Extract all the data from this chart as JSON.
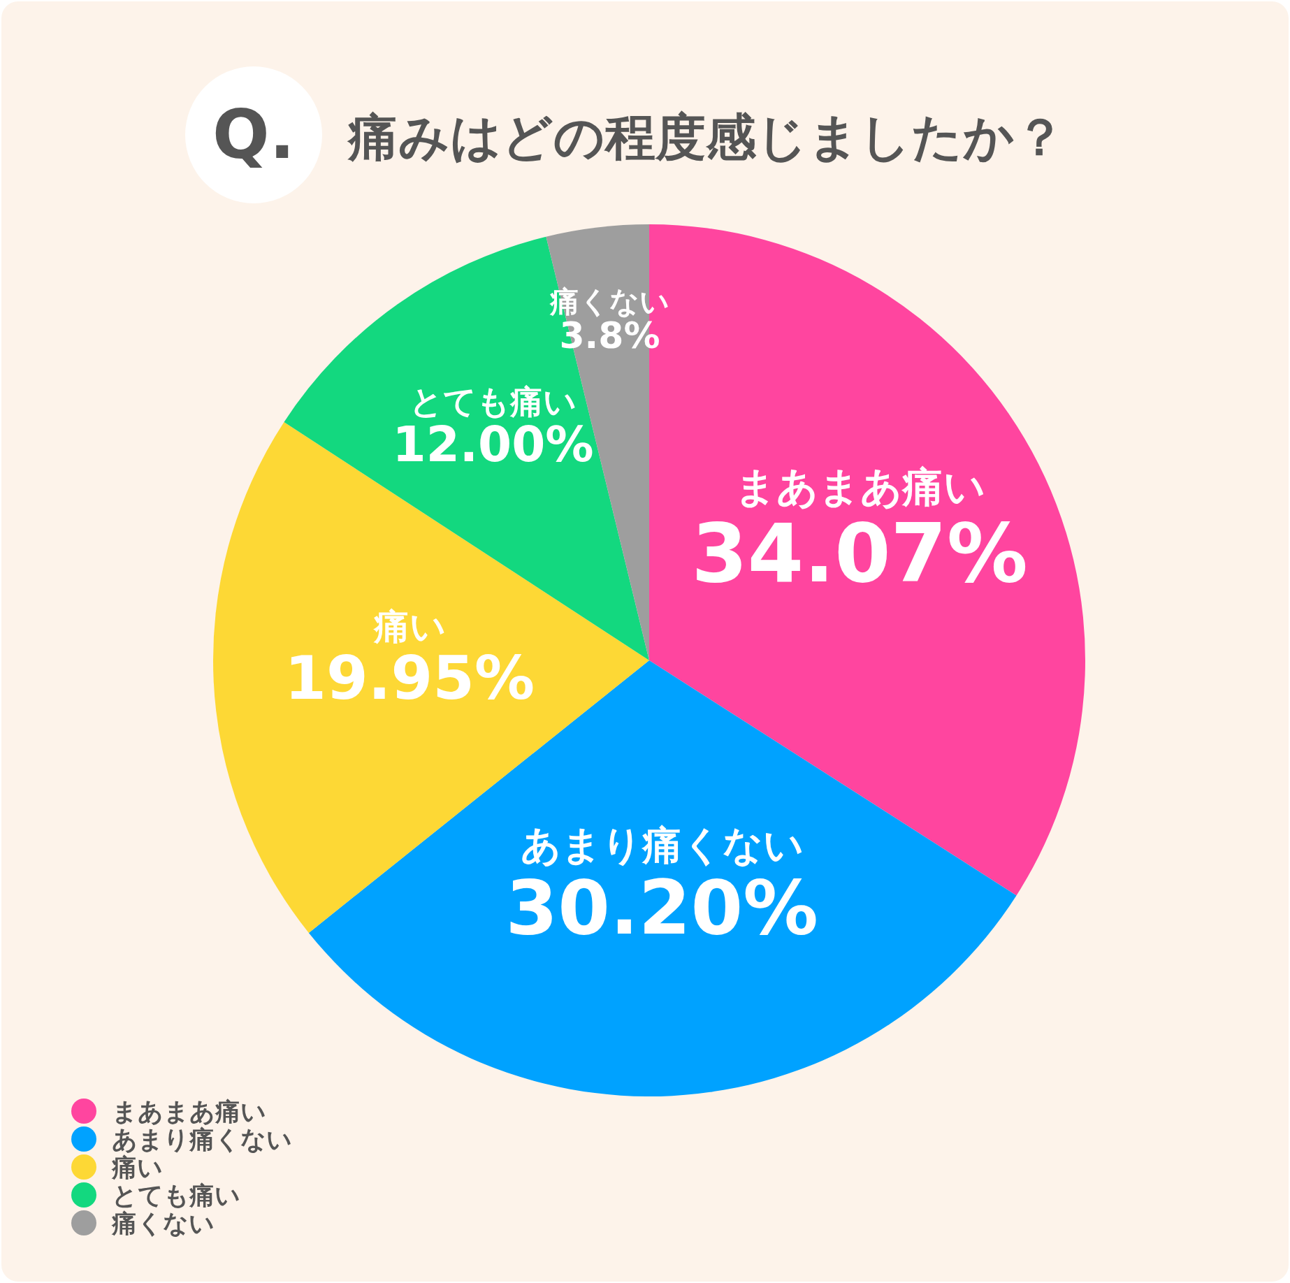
{
  "chart_data": {
    "type": "pie",
    "title": "痛みはどの程度感じましたか？",
    "annotations": [
      "Q."
    ],
    "categories": [
      "まあまあ痛い",
      "あまり痛くない",
      "痛い",
      "とても痛い",
      "痛くない"
    ],
    "values": [
      34.07,
      30.2,
      19.95,
      12.0,
      3.8
    ],
    "value_labels": [
      "34.07%",
      "30.20%",
      "19.95%",
      "12.00%",
      "3.8%"
    ],
    "colors": [
      "#ff459f",
      "#00a2ff",
      "#fdd835",
      "#13d87f",
      "#9e9e9e"
    ],
    "legend": "bottom left"
  }
}
